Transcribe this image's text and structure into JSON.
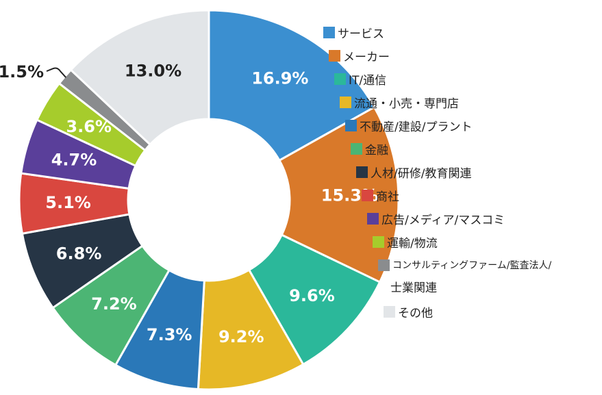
{
  "chart_data": {
    "type": "donut",
    "title": "",
    "categories": [
      "サービス",
      "メーカー",
      "IT/通信",
      "流通・小売・専門店",
      "不動産/建設/プラント",
      "金融",
      "人材/研修/教育関連",
      "商社",
      "広告/メディア/マスコミ",
      "運輸/物流",
      "コンサルティングファーム/監査法人/",
      "その他"
    ],
    "category_continuation": "士業関連",
    "values": [
      16.9,
      15.3,
      9.6,
      9.2,
      7.3,
      7.2,
      6.8,
      5.1,
      4.7,
      3.6,
      1.5,
      13.0
    ],
    "value_labels": [
      "16.9%",
      "15.3%",
      "9.6%",
      "9.2%",
      "7.3%",
      "7.2%",
      "6.8%",
      "5.1%",
      "4.7%",
      "3.6%",
      "1.5%",
      "13.0%"
    ],
    "colors": [
      "#3b8fd0",
      "#d9792a",
      "#2bb89a",
      "#e6b826",
      "#2a78b8",
      "#4cb574",
      "#263545",
      "#d9473f",
      "#5a3f9a",
      "#a6cc2c",
      "#8a8c8e",
      "#e2e5e8"
    ],
    "unit": "%",
    "legend_position": "right",
    "start_angle": "top (12 o'clock), clockwise"
  }
}
